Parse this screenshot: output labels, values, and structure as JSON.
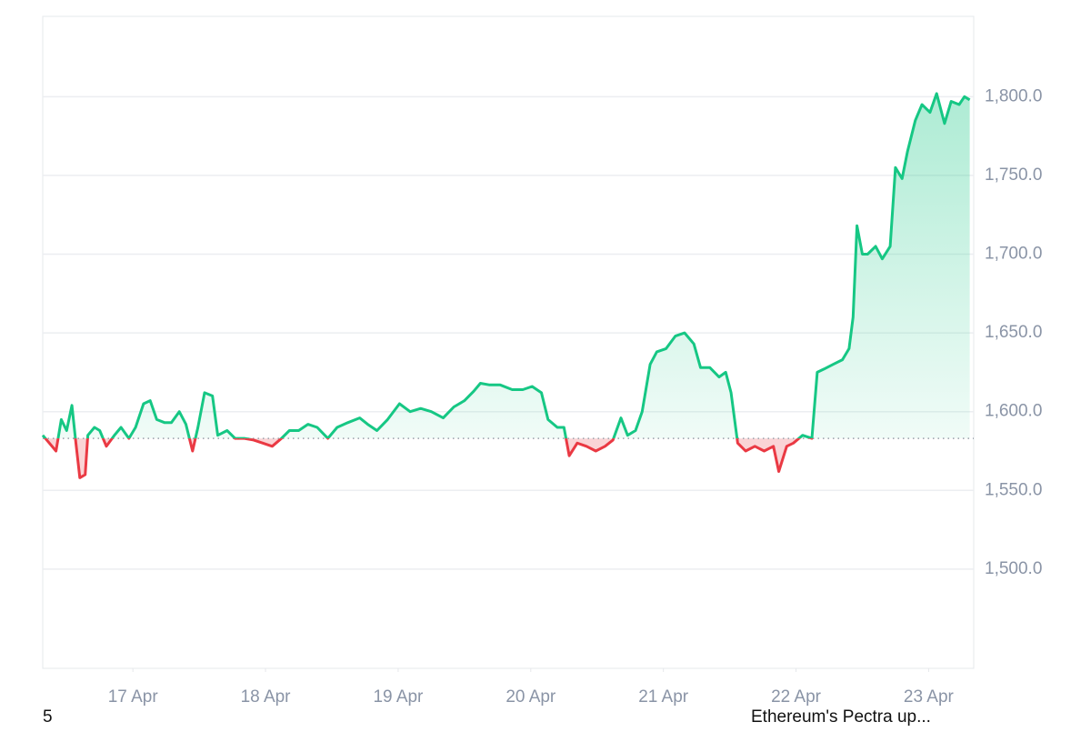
{
  "chart_data": {
    "type": "line",
    "x": [
      16.32,
      16.37,
      16.42,
      16.46,
      16.5,
      16.54,
      16.57,
      16.6,
      16.64,
      16.66,
      16.71,
      16.75,
      16.8,
      16.86,
      16.91,
      16.97,
      17.02,
      17.08,
      17.13,
      17.18,
      17.24,
      17.29,
      17.35,
      17.4,
      17.45,
      17.49,
      17.54,
      17.6,
      17.64,
      17.71,
      17.77,
      17.84,
      17.91,
      17.98,
      18.05,
      18.12,
      18.18,
      18.25,
      18.32,
      18.39,
      18.47,
      18.54,
      18.62,
      18.71,
      18.77,
      18.84,
      18.92,
      19.01,
      19.09,
      19.17,
      19.25,
      19.34,
      19.42,
      19.5,
      19.57,
      19.62,
      19.69,
      19.77,
      19.86,
      19.94,
      20.01,
      20.08,
      20.13,
      20.2,
      20.25,
      20.29,
      20.35,
      20.42,
      20.49,
      20.56,
      20.62,
      20.68,
      20.73,
      20.79,
      20.84,
      20.9,
      20.95,
      21.02,
      21.09,
      21.16,
      21.23,
      21.28,
      21.35,
      21.42,
      21.47,
      21.51,
      21.56,
      21.62,
      21.69,
      21.76,
      21.83,
      21.87,
      21.93,
      21.98,
      22.05,
      22.12,
      22.16,
      22.21,
      22.28,
      22.35,
      22.4,
      22.43,
      22.46,
      22.5,
      22.54,
      22.6,
      22.65,
      22.71,
      22.75,
      22.8,
      22.84,
      22.9,
      22.95,
      23.01,
      23.06,
      23.12,
      23.17,
      23.23,
      23.27,
      23.31
    ],
    "series": [
      {
        "color": "#16c784",
        "negative_color": "#ea3943",
        "values": [
          1585,
          1580,
          1575,
          1595,
          1588,
          1604,
          1580,
          1558,
          1560,
          1585,
          1590,
          1588,
          1578,
          1585,
          1590,
          1583,
          1590,
          1605,
          1607,
          1595,
          1593,
          1593,
          1600,
          1592,
          1575,
          1590,
          1612,
          1610,
          1585,
          1588,
          1583,
          1583,
          1582,
          1580,
          1578,
          1583,
          1588,
          1588,
          1592,
          1590,
          1583,
          1590,
          1593,
          1596,
          1592,
          1588,
          1595,
          1605,
          1600,
          1602,
          1600,
          1596,
          1603,
          1607,
          1613,
          1618,
          1617,
          1617,
          1614,
          1614,
          1616,
          1612,
          1595,
          1590,
          1590,
          1572,
          1580,
          1578,
          1575,
          1578,
          1582,
          1596,
          1585,
          1588,
          1600,
          1630,
          1638,
          1640,
          1648,
          1650,
          1643,
          1628,
          1628,
          1622,
          1625,
          1612,
          1580,
          1575,
          1578,
          1575,
          1578,
          1562,
          1578,
          1580,
          1585,
          1583,
          1625,
          1627,
          1630,
          1633,
          1640,
          1660,
          1718,
          1700,
          1700,
          1705,
          1697,
          1705,
          1755,
          1748,
          1765,
          1785,
          1795,
          1790,
          1802,
          1783,
          1797,
          1795,
          1800,
          1798
        ]
      }
    ],
    "baseline": 1583,
    "xlim": [
      16.32,
      23.34
    ],
    "xticks": [
      {
        "value": 17,
        "label": "17 Apr"
      },
      {
        "value": 18,
        "label": "18 Apr"
      },
      {
        "value": 19,
        "label": "19 Apr"
      },
      {
        "value": 20,
        "label": "20 Apr"
      },
      {
        "value": 21,
        "label": "21 Apr"
      },
      {
        "value": 22,
        "label": "22 Apr"
      },
      {
        "value": 23,
        "label": "23 Apr"
      }
    ],
    "ylim": [
      1437,
      1851
    ],
    "yticks": [
      {
        "value": 1500,
        "label": "1,500.0"
      },
      {
        "value": 1550,
        "label": "1,550.0"
      },
      {
        "value": 1600,
        "label": "1,600.0"
      },
      {
        "value": 1650,
        "label": "1,650.0"
      },
      {
        "value": 1700,
        "label": "1,700.0"
      },
      {
        "value": 1750,
        "label": "1,750.0"
      },
      {
        "value": 1800,
        "label": "1,800.0"
      }
    ],
    "grid": true
  },
  "footer": {
    "left": "5",
    "news": "Ethereum's Pectra up..."
  }
}
